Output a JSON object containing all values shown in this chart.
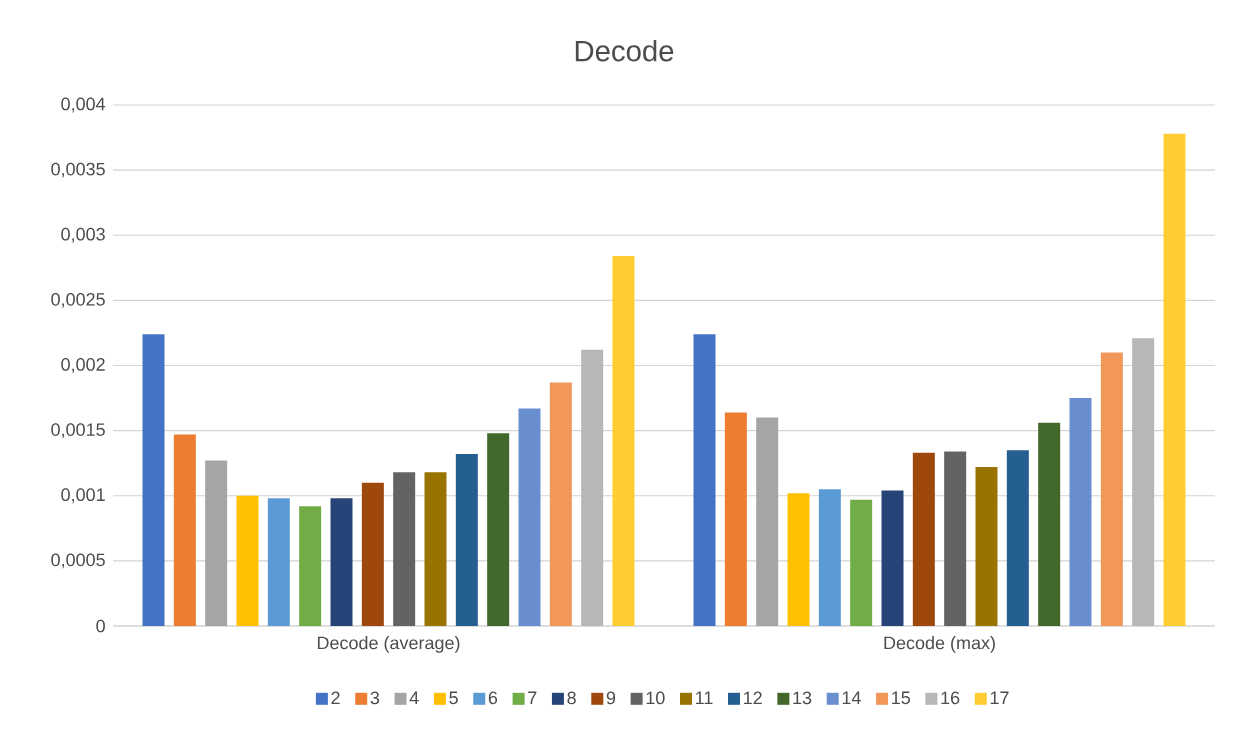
{
  "chart_data": {
    "type": "bar",
    "title": "Decode",
    "categories": [
      "Decode (average)",
      "Decode (max)"
    ],
    "ylim": [
      0,
      0.004
    ],
    "yticks": [
      0,
      {
        "value": 0.0005,
        "label": "0,0005"
      },
      {
        "value": 0.001,
        "label": "0,001"
      },
      {
        "value": 0.0015,
        "label": "0,0015"
      },
      {
        "value": 0.002,
        "label": "0,002"
      },
      {
        "value": 0.0025,
        "label": "0,0025"
      },
      {
        "value": 0.003,
        "label": "0,003"
      },
      {
        "value": 0.0035,
        "label": "0,0035"
      },
      {
        "value": 0.004,
        "label": "0,004"
      }
    ],
    "grid": "y",
    "legend": "bottom",
    "series": [
      {
        "name": "2",
        "color": "#4472c4",
        "values": [
          0.00224,
          0.00224
        ]
      },
      {
        "name": "3",
        "color": "#ed7d31",
        "values": [
          0.00147,
          0.00164
        ]
      },
      {
        "name": "4",
        "color": "#a5a5a5",
        "values": [
          0.00127,
          0.0016
        ]
      },
      {
        "name": "5",
        "color": "#ffc000",
        "values": [
          0.001,
          0.00102
        ]
      },
      {
        "name": "6",
        "color": "#5b9bd5",
        "values": [
          0.00098,
          0.00105
        ]
      },
      {
        "name": "7",
        "color": "#70ad47",
        "values": [
          0.00092,
          0.00097
        ]
      },
      {
        "name": "8",
        "color": "#264478",
        "values": [
          0.00098,
          0.00104
        ]
      },
      {
        "name": "9",
        "color": "#9e480e",
        "values": [
          0.0011,
          0.00133
        ]
      },
      {
        "name": "10",
        "color": "#636363",
        "values": [
          0.00118,
          0.00134
        ]
      },
      {
        "name": "11",
        "color": "#997300",
        "values": [
          0.00118,
          0.00122
        ]
      },
      {
        "name": "12",
        "color": "#255e91",
        "values": [
          0.00132,
          0.00135
        ]
      },
      {
        "name": "13",
        "color": "#43682b",
        "values": [
          0.00148,
          0.00156
        ]
      },
      {
        "name": "14",
        "color": "#698ed0",
        "values": [
          0.00167,
          0.00175
        ]
      },
      {
        "name": "15",
        "color": "#f1975a",
        "values": [
          0.00187,
          0.0021
        ]
      },
      {
        "name": "16",
        "color": "#b7b7b7",
        "values": [
          0.00212,
          0.00221
        ]
      },
      {
        "name": "17",
        "color": "#ffcd33",
        "values": [
          0.00284,
          0.00378
        ]
      }
    ]
  }
}
